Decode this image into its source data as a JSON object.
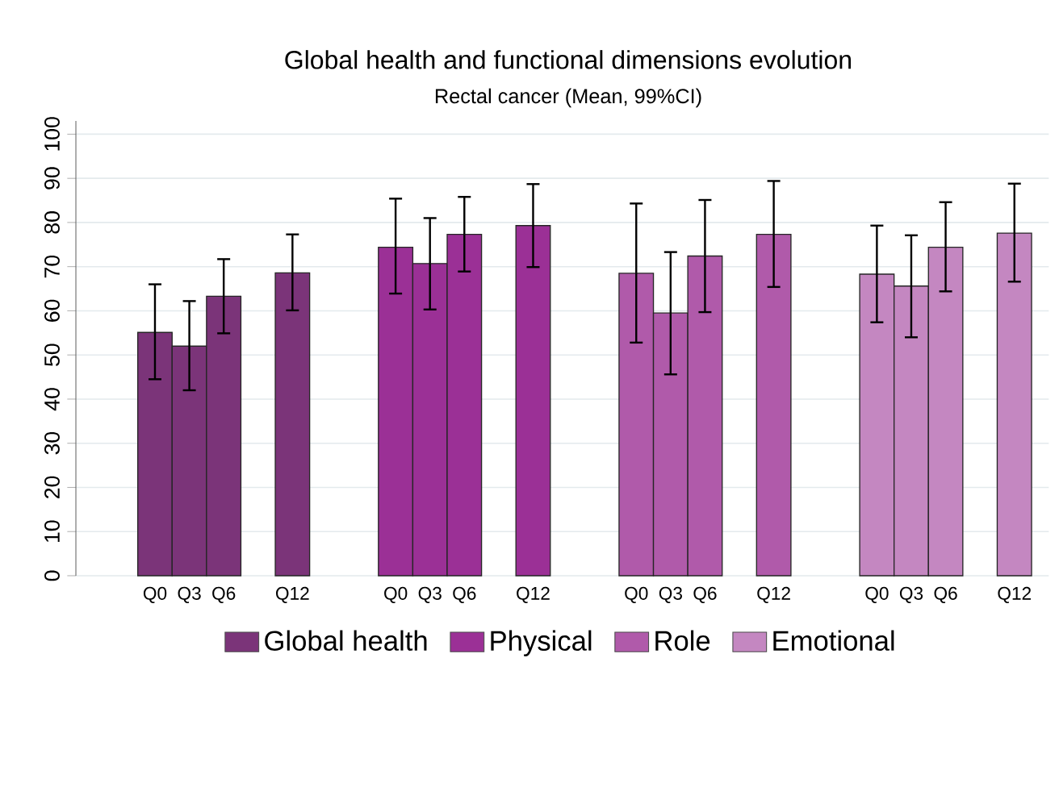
{
  "chart_data": {
    "type": "bar",
    "title": "Global health and functional dimensions evolution",
    "subtitle": "Rectal cancer (Mean, 99%CI)",
    "categories": [
      "Q0",
      "Q3",
      "Q6",
      null,
      "Q12",
      null,
      null,
      "Q0",
      "Q3",
      "Q6",
      null,
      "Q12",
      null,
      null,
      "Q0",
      "Q3",
      "Q6",
      null,
      "Q12",
      null,
      null,
      "Q0",
      "Q3",
      "Q6",
      null,
      "Q12"
    ],
    "series": [
      {
        "name": "Global health",
        "color": "#7b3479",
        "values": [
          55.1,
          52.0,
          63.3,
          null,
          68.6,
          null,
          null,
          null,
          null,
          null,
          null,
          null,
          null,
          null,
          null,
          null,
          null,
          null,
          null,
          null,
          null,
          null,
          null,
          null,
          null,
          null
        ],
        "errors": [
          [
            44.5,
            66.0
          ],
          [
            42.0,
            62.2
          ],
          [
            54.9,
            71.7
          ],
          null,
          [
            60.1,
            77.3
          ],
          null,
          null,
          null,
          null,
          null,
          null,
          null,
          null,
          null,
          null,
          null,
          null,
          null,
          null,
          null,
          null,
          null,
          null,
          null,
          null,
          null
        ]
      },
      {
        "name": "Physical",
        "color": "#9b3096",
        "values": [
          null,
          null,
          null,
          null,
          null,
          null,
          null,
          74.4,
          70.7,
          77.3,
          null,
          79.3,
          null,
          null,
          null,
          null,
          null,
          null,
          null,
          null,
          null,
          null,
          null,
          null,
          null,
          null
        ],
        "errors": [
          null,
          null,
          null,
          null,
          null,
          null,
          null,
          [
            63.9,
            85.4
          ],
          [
            60.3,
            81.0
          ],
          [
            68.9,
            85.8
          ],
          null,
          [
            69.9,
            88.7
          ],
          null,
          null,
          null,
          null,
          null,
          null,
          null,
          null,
          null,
          null,
          null,
          null,
          null,
          null
        ]
      },
      {
        "name": "Role",
        "color": "#b05aaa",
        "values": [
          null,
          null,
          null,
          null,
          null,
          null,
          null,
          null,
          null,
          null,
          null,
          null,
          null,
          null,
          68.5,
          59.5,
          72.4,
          null,
          77.3,
          null,
          null,
          null,
          null,
          null,
          null,
          null
        ],
        "errors": [
          null,
          null,
          null,
          null,
          null,
          null,
          null,
          null,
          null,
          null,
          null,
          null,
          null,
          null,
          [
            52.8,
            84.3
          ],
          [
            45.6,
            73.3
          ],
          [
            59.7,
            85.1
          ],
          null,
          [
            65.4,
            89.4
          ],
          null,
          null,
          null,
          null,
          null,
          null,
          null
        ]
      },
      {
        "name": "Emotional",
        "color": "#c487c1",
        "values": [
          null,
          null,
          null,
          null,
          null,
          null,
          null,
          null,
          null,
          null,
          null,
          null,
          null,
          null,
          null,
          null,
          null,
          null,
          null,
          null,
          null,
          68.3,
          65.6,
          74.4,
          null,
          77.6
        ],
        "errors": [
          null,
          null,
          null,
          null,
          null,
          null,
          null,
          null,
          null,
          null,
          null,
          null,
          null,
          null,
          null,
          null,
          null,
          null,
          null,
          null,
          null,
          [
            57.4,
            79.3
          ],
          [
            54.0,
            77.1
          ],
          [
            64.4,
            84.6
          ],
          null,
          [
            66.6,
            88.8
          ]
        ]
      }
    ],
    "ylim": [
      0,
      103
    ],
    "yticks": [
      0,
      10,
      20,
      30,
      40,
      50,
      60,
      70,
      80,
      90,
      100
    ],
    "grid": "y",
    "legend": "bottom"
  }
}
